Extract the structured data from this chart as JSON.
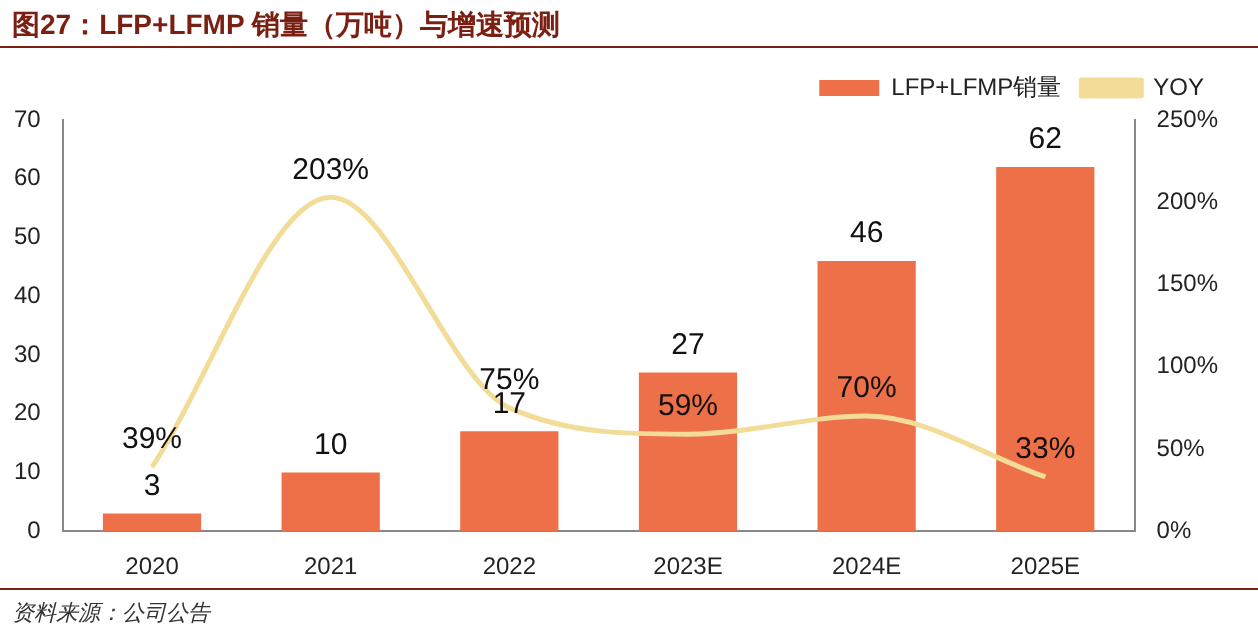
{
  "chart_data": {
    "type": "bar",
    "title": "图27：LFP+LFMP 销量（万吨）与增速预测",
    "categories": [
      "2020",
      "2021",
      "2022",
      "2023E",
      "2024E",
      "2025E"
    ],
    "series": [
      {
        "name": "LFP+LFMP销量",
        "color": "#ee7048",
        "values": [
          3,
          10,
          17,
          27,
          46,
          62
        ],
        "value_labels": [
          "3",
          "10",
          "17",
          "27",
          "46",
          "62"
        ]
      },
      {
        "name": "YOY",
        "type": "line",
        "axis": "y2",
        "color": "#f3dc98",
        "values": [
          39,
          203,
          75,
          59,
          70,
          33
        ],
        "value_labels": [
          "39%",
          "203%",
          "75%",
          "59%",
          "70%",
          "33%"
        ]
      }
    ],
    "ylim": [
      0,
      70
    ],
    "yticks": [
      0,
      10,
      20,
      30,
      40,
      50,
      60,
      70
    ],
    "y2lim": [
      0,
      250
    ],
    "y2ticks": [
      {
        "value": 0,
        "label": "0%"
      },
      {
        "value": 50,
        "label": "50%"
      },
      {
        "value": 100,
        "label": "100%"
      },
      {
        "value": 150,
        "label": "150%"
      },
      {
        "value": 200,
        "label": "200%"
      },
      {
        "value": 250,
        "label": "250%"
      }
    ],
    "legend": "top right",
    "grid": false,
    "marker": "none",
    "line_style": "solid",
    "annotations": [
      "资料来源：公司公告"
    ]
  }
}
